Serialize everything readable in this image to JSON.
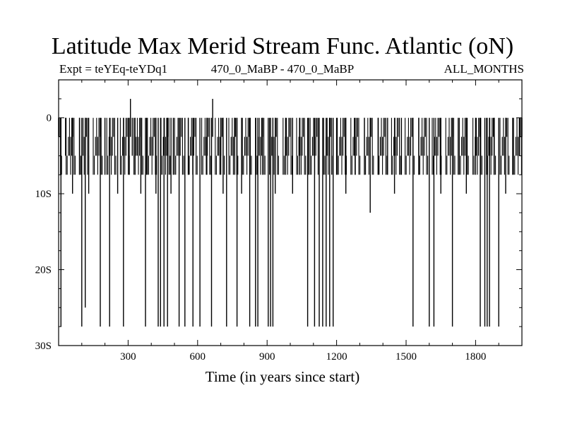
{
  "header": {
    "title": "Latitude Max Merid Stream Func. Atlantic (oN)",
    "left": "Expt = teYEq-teYDq1",
    "center": "470_0_MaBP - 470_0_MaBP",
    "right": "ALL_MONTHS"
  },
  "chart_data": {
    "type": "line",
    "title": "Latitude Max Merid Stream Func. Atlantic (oN)",
    "xlabel": "Time (in years since start)",
    "ylabel": "",
    "xlim": [
      0,
      2000
    ],
    "ylim": [
      -30,
      5
    ],
    "x_ticks": [
      300,
      600,
      900,
      1200,
      1500,
      1800
    ],
    "x_tick_labels": [
      "300",
      "600",
      "900",
      "1200",
      "1500",
      "1800"
    ],
    "y_ticks": [
      0,
      -10,
      -20,
      -30
    ],
    "y_tick_labels": [
      "0",
      "10S",
      "20S",
      "30S"
    ],
    "grid": false,
    "baseline_levels": [
      0,
      -2.5,
      -5,
      -7.5
    ],
    "series": [
      {
        "values_note_free": true,
        "x": [
          0,
          10,
          30,
          60,
          90,
          100,
          115,
          130,
          180,
          200,
          220,
          255,
          280,
          305,
          310,
          318,
          330,
          355,
          375,
          380,
          420,
          430,
          440,
          455,
          470,
          485,
          495,
          520,
          545,
          560,
          580,
          610,
          640,
          660,
          665,
          700,
          710,
          725,
          760,
          770,
          790,
          825,
          850,
          860,
          880,
          905,
          915,
          925,
          935,
          980,
          1010,
          1040,
          1075,
          1080,
          1105,
          1125,
          1140,
          1155,
          1170,
          1185,
          1200,
          1240,
          1280,
          1320,
          1345,
          1380,
          1420,
          1450,
          1480,
          1530,
          1555,
          1600,
          1620,
          1650,
          1700,
          1725,
          1760,
          1800,
          1820,
          1840,
          1850,
          1860,
          1880,
          1900,
          1930,
          1960,
          1990,
          2000
        ],
        "y": [
          -2.5,
          -27.5,
          -5,
          -10,
          -7.5,
          -27.5,
          -25,
          -10,
          -27.5,
          -7.5,
          -27.5,
          -10,
          -27.5,
          -7.5,
          2.5,
          -5,
          -7.5,
          -10,
          -27.5,
          -7.5,
          -10,
          -27.5,
          -27.5,
          -27.5,
          -27.5,
          -10,
          -7.5,
          -27.5,
          -27.5,
          -7.5,
          -27.5,
          -27.5,
          -7.5,
          -27.5,
          2.5,
          -7.5,
          -10,
          -27.5,
          -7.5,
          -27.5,
          -10,
          -27.5,
          -27.5,
          -27.5,
          -7.5,
          -27.5,
          -27.5,
          -27.5,
          -10,
          -7.5,
          -10,
          -7.5,
          -27.5,
          -7.5,
          -27.5,
          -27.5,
          -27.5,
          -27.5,
          -27.5,
          -27.5,
          -7.5,
          -10,
          -7.5,
          -7.5,
          -12.5,
          -7.5,
          -7.5,
          -10,
          -7.5,
          -27.5,
          -7.5,
          -27.5,
          -27.5,
          -10,
          -27.5,
          -7.5,
          -10,
          -7.5,
          -27.5,
          -27.5,
          -27.5,
          -27.5,
          -7.5,
          -27.5,
          -10,
          -7.5,
          -5,
          -2.5
        ]
      }
    ]
  }
}
